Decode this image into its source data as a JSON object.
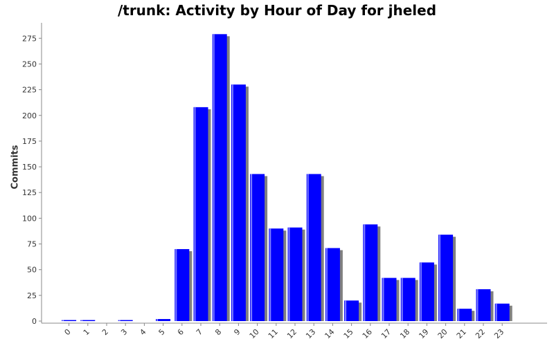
{
  "chart_data": {
    "type": "bar",
    "title": "/trunk: Activity by Hour of Day for jheled",
    "xlabel": "",
    "ylabel": "Commits",
    "categories": [
      "0",
      "1",
      "2",
      "3",
      "4",
      "5",
      "6",
      "7",
      "8",
      "9",
      "10",
      "11",
      "12",
      "13",
      "14",
      "15",
      "16",
      "17",
      "18",
      "19",
      "20",
      "21",
      "22",
      "23"
    ],
    "values": [
      1,
      1,
      0,
      1,
      0,
      2,
      70,
      208,
      279,
      230,
      143,
      90,
      91,
      143,
      71,
      20,
      94,
      42,
      42,
      57,
      84,
      12,
      31,
      17
    ],
    "ylim": [
      0,
      290
    ],
    "yticks": [
      0,
      25,
      50,
      75,
      100,
      125,
      150,
      175,
      200,
      225,
      250,
      275
    ],
    "grid": false,
    "legend": "none",
    "colors": {
      "bar": "#0000ff",
      "bar_highlight": "#8080ff",
      "shadow": "#808080",
      "axis": "#888888"
    }
  }
}
